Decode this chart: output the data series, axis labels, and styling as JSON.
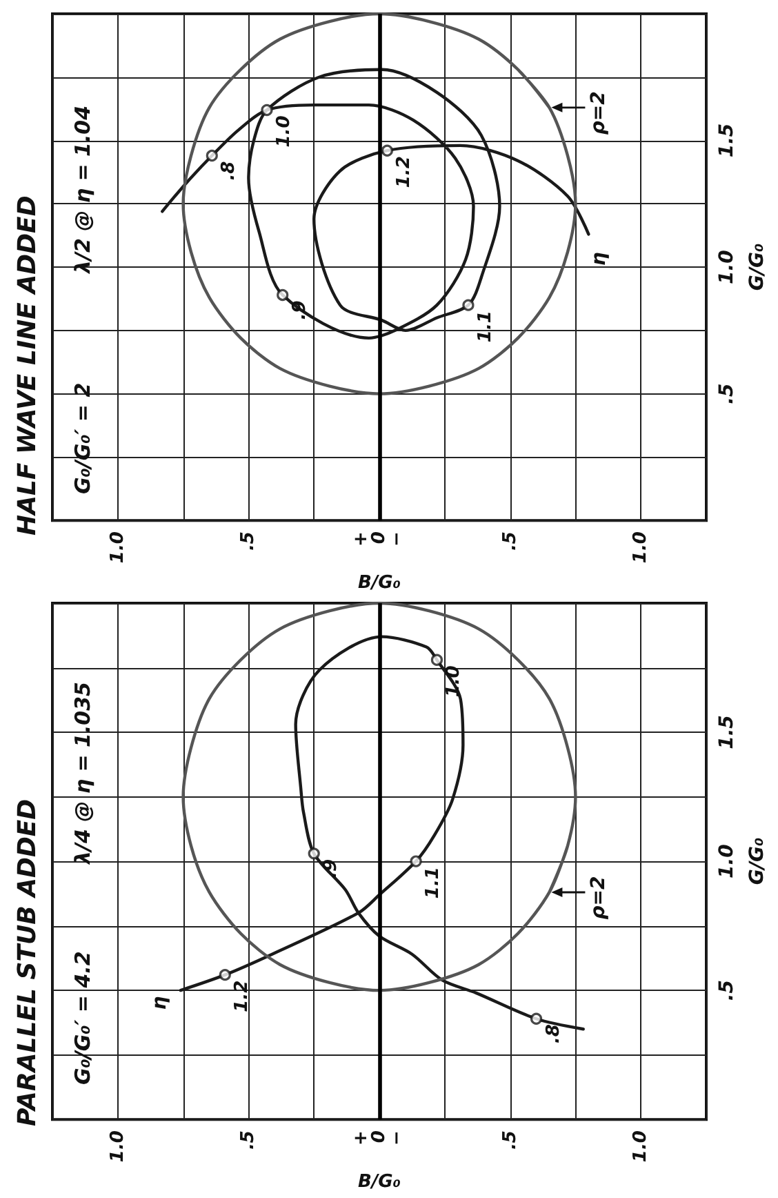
{
  "chart_data": [
    {
      "type": "line",
      "title": "HALF WAVE LINE ADDED",
      "xlabel": "B/G₀",
      "ylabel": "G/G₀",
      "xlim": [
        1.25,
        -1.25
      ],
      "ylim": [
        0,
        2
      ],
      "xticks": [
        {
          "value": 1.25,
          "label": null
        },
        {
          "value": 1,
          "label": "1.0"
        },
        {
          "value": 0.75,
          "label": null
        },
        {
          "value": 0.5,
          "label": ".5"
        },
        {
          "value": 0.25,
          "label": null
        },
        {
          "value": 0,
          "label": "+\n0\n−"
        },
        {
          "value": -0.25,
          "label": null
        },
        {
          "value": -0.5,
          "label": ".5"
        },
        {
          "value": -0.75,
          "label": null
        },
        {
          "value": -1,
          "label": "1.0"
        },
        {
          "value": -1.25,
          "label": null
        }
      ],
      "yticks": [
        {
          "value": 0,
          "label": null
        },
        {
          "value": 0.25,
          "label": null
        },
        {
          "value": 0.5,
          "label": ".5"
        },
        {
          "value": 0.75,
          "label": null
        },
        {
          "value": 1,
          "label": "1.0"
        },
        {
          "value": 1.25,
          "label": null
        },
        {
          "value": 1.5,
          "label": "1.5"
        },
        {
          "value": 1.75,
          "label": null
        },
        {
          "value": 2,
          "label": null
        }
      ],
      "grid": true,
      "legend": false,
      "marker": "none",
      "ref_lines": [
        {
          "axis": "x",
          "value": 0
        }
      ],
      "annotations": [
        "G₀/G₀′ = 2",
        "λ/2 @ η = 1.04",
        {
          "text": ".8",
          "x": 0.64,
          "y": 1.44
        },
        {
          "text": ".9",
          "x": 0.37,
          "y": 0.89
        },
        {
          "text": "1.0",
          "x": 0.43,
          "y": 1.62
        },
        {
          "text": "1.1",
          "x": -0.34,
          "y": 0.85
        },
        {
          "text": "1.2",
          "x": -0.03,
          "y": 1.46
        },
        {
          "text": "ρ=2",
          "x": -0.65,
          "y": 1.63
        }
      ],
      "series": [
        {
          "type": "line",
          "name": "η",
          "color": "#1a1a1a",
          "x": [
            0.83,
            0.74,
            0.64,
            0.54,
            0.43,
            0.25,
            0.04,
            -0.13,
            -0.29,
            -0.36,
            -0.33,
            -0.22,
            -0.06,
            0.04,
            0.37,
            0.46,
            0.5,
            0.48,
            0.43,
            0.23,
            -0.01,
            -0.22,
            -0.39,
            -0.46,
            -0.39,
            -0.34,
            -0.22,
            -0.1,
            -0.01,
            0.15,
            0.25,
            0.15,
            -0.03,
            -0.31,
            -0.53,
            -0.72,
            -0.8
          ],
          "values": [
            1.22,
            1.33,
            1.44,
            1.54,
            1.62,
            1.64,
            1.64,
            1.58,
            1.43,
            1.24,
            1.03,
            0.85,
            0.75,
            0.72,
            0.89,
            1.14,
            1.35,
            1.5,
            1.62,
            1.75,
            1.78,
            1.69,
            1.52,
            1.24,
            0.96,
            0.85,
            0.8,
            0.75,
            0.79,
            0.85,
            1.19,
            1.38,
            1.46,
            1.48,
            1.42,
            1.28,
            1.13
          ]
        },
        {
          "type": "line",
          "color": "#555555",
          "x": [
            -0.65,
            -0.53,
            -0.38,
            -0.19,
            0,
            0.19,
            0.38,
            0.53,
            0.65,
            0.72,
            0.75,
            0.72,
            0.65,
            0.53,
            0.38,
            0.19,
            0,
            -0.19,
            -0.38,
            -0.53,
            -0.65,
            -0.72,
            -0.75,
            -0.72,
            -0.65,
            -0.53
          ],
          "values": [
            1.63,
            1.78,
            1.9,
            1.97,
            2.0,
            1.97,
            1.9,
            1.78,
            1.63,
            1.44,
            1.25,
            1.06,
            0.88,
            0.72,
            0.6,
            0.53,
            0.5,
            0.53,
            0.6,
            0.72,
            0.88,
            1.06,
            1.25,
            1.44,
            1.63,
            1.78
          ]
        },
        {
          "type": "scatter",
          "marker": "circle",
          "color": "#1a1a1a",
          "x": [
            0.64,
            0.37,
            0.43,
            -0.34,
            -0.03
          ],
          "values": [
            1.44,
            0.89,
            1.62,
            0.85,
            1.46
          ]
        }
      ]
    },
    {
      "type": "line",
      "title": "PARALLEL STUB ADDED",
      "xlabel": "B/G₀",
      "ylabel": "G/G₀",
      "xlim": [
        1.25,
        -1.25
      ],
      "ylim": [
        0,
        2
      ],
      "xticks": [
        {
          "value": 1.25,
          "label": null
        },
        {
          "value": 1,
          "label": "1.0"
        },
        {
          "value": 0.75,
          "label": null
        },
        {
          "value": 0.5,
          "label": ".5"
        },
        {
          "value": 0.25,
          "label": null
        },
        {
          "value": 0,
          "label": "+\n0\n−"
        },
        {
          "value": -0.25,
          "label": null
        },
        {
          "value": -0.5,
          "label": ".5"
        },
        {
          "value": -0.75,
          "label": null
        },
        {
          "value": -1,
          "label": "1.0"
        },
        {
          "value": -1.25,
          "label": null
        }
      ],
      "yticks": [
        {
          "value": 0,
          "label": null
        },
        {
          "value": 0.25,
          "label": null
        },
        {
          "value": 0.5,
          "label": ".5"
        },
        {
          "value": 0.75,
          "label": null
        },
        {
          "value": 1,
          "label": "1.0"
        },
        {
          "value": 1.25,
          "label": null
        },
        {
          "value": 1.5,
          "label": "1.5"
        },
        {
          "value": 1.75,
          "label": null
        },
        {
          "value": 2,
          "label": null
        }
      ],
      "grid": true,
      "legend": false,
      "marker": "none",
      "ref_lines": [
        {
          "axis": "x",
          "value": 0
        }
      ],
      "annotations": [
        "G₀/G₀′ = 4.2",
        "λ/4 @ η = 1.035",
        {
          "text": ".8",
          "x": -0.6,
          "y": 0.39
        },
        {
          "text": ".9",
          "x": 0.25,
          "y": 1.03
        },
        {
          "text": "1.0",
          "x": -0.22,
          "y": 1.78
        },
        {
          "text": "1.1",
          "x": -0.14,
          "y": 1.0
        },
        {
          "text": "1.2",
          "x": 0.59,
          "y": 0.56
        },
        {
          "text": "ρ=2",
          "x": -0.65,
          "y": 0.88
        }
      ],
      "series": [
        {
          "type": "line",
          "name": "η",
          "color": "#1a1a1a",
          "x": [
            -0.78,
            -0.6,
            -0.37,
            -0.24,
            -0.125,
            0,
            0.08,
            0.13,
            0.25,
            0.29,
            0.3,
            0.32,
            0.23,
            -0.01,
            -0.18,
            -0.22,
            -0.31,
            -0.32,
            -0.28,
            -0.21,
            -0.14,
            0,
            0.08,
            0.41,
            0.59,
            0.76
          ],
          "values": [
            0.35,
            0.39,
            0.49,
            0.54,
            0.64,
            0.71,
            0.8,
            0.89,
            1.03,
            1.19,
            1.28,
            1.53,
            1.74,
            1.87,
            1.83,
            1.78,
            1.63,
            1.45,
            1.24,
            1.1,
            1.0,
            0.87,
            0.8,
            0.64,
            0.56,
            0.5
          ]
        },
        {
          "type": "line",
          "color": "#555555",
          "x": [
            -0.65,
            -0.72,
            -0.75,
            -0.72,
            -0.65,
            -0.53,
            -0.38,
            -0.19,
            0,
            0.19,
            0.38,
            0.53,
            0.65,
            0.72,
            0.75,
            0.72,
            0.65,
            0.53,
            0.38,
            0.19,
            0,
            -0.19,
            -0.38,
            -0.53,
            -0.65,
            -0.72
          ],
          "values": [
            0.88,
            1.06,
            1.25,
            1.44,
            1.63,
            1.78,
            1.9,
            1.97,
            2.0,
            1.97,
            1.9,
            1.78,
            1.63,
            1.44,
            1.25,
            1.06,
            0.88,
            0.72,
            0.6,
            0.53,
            0.5,
            0.53,
            0.6,
            0.72,
            0.88,
            1.06
          ]
        },
        {
          "type": "scatter",
          "marker": "circle",
          "color": "#1a1a1a",
          "x": [
            -0.6,
            0.25,
            -0.22,
            -0.14,
            0.59
          ],
          "values": [
            0.39,
            1.03,
            1.78,
            1.0,
            0.56
          ]
        }
      ]
    }
  ]
}
